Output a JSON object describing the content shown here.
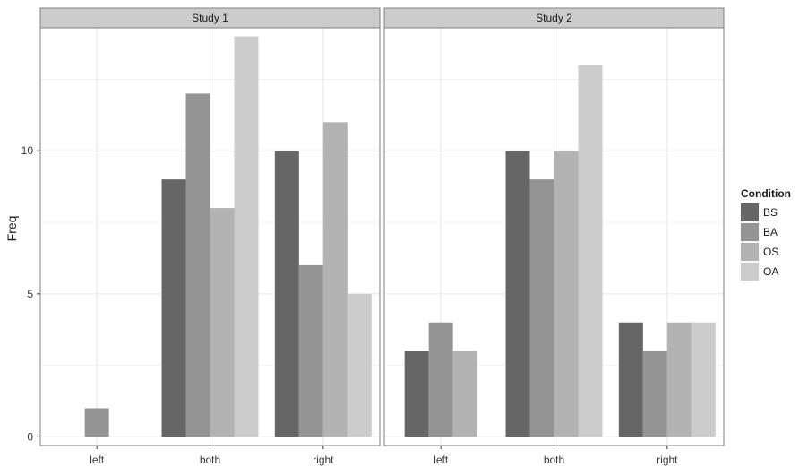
{
  "chart_data": {
    "type": "bar",
    "ylabel": "Freq",
    "xlabel": "",
    "ylim": [
      -0.3,
      14.3
    ],
    "yticks": [
      0,
      5,
      10
    ],
    "categories": [
      "left",
      "both",
      "right"
    ],
    "legend": {
      "title": "Condition",
      "position": "right",
      "items": [
        {
          "label": "BS",
          "color": "#666666"
        },
        {
          "label": "BA",
          "color": "#949494"
        },
        {
          "label": "OS",
          "color": "#b3b3b3"
        },
        {
          "label": "OA",
          "color": "#cccccc"
        }
      ]
    },
    "panels": [
      {
        "strip": "Study 1",
        "bars": [
          {
            "category": "left",
            "series": [
              {
                "name": "BA",
                "value": 1
              }
            ]
          },
          {
            "category": "both",
            "series": [
              {
                "name": "BS",
                "value": 9
              },
              {
                "name": "BA",
                "value": 12
              },
              {
                "name": "OS",
                "value": 8
              },
              {
                "name": "OA",
                "value": 14
              }
            ]
          },
          {
            "category": "right",
            "series": [
              {
                "name": "BS",
                "value": 10
              },
              {
                "name": "BA",
                "value": 6
              },
              {
                "name": "OS",
                "value": 11
              },
              {
                "name": "OA",
                "value": 5
              }
            ]
          }
        ]
      },
      {
        "strip": "Study 2",
        "bars": [
          {
            "category": "left",
            "series": [
              {
                "name": "BS",
                "value": 3
              },
              {
                "name": "BA",
                "value": 4
              },
              {
                "name": "OS",
                "value": 3
              }
            ]
          },
          {
            "category": "both",
            "series": [
              {
                "name": "BS",
                "value": 10
              },
              {
                "name": "BA",
                "value": 9
              },
              {
                "name": "OS",
                "value": 10
              },
              {
                "name": "OA",
                "value": 13
              }
            ]
          },
          {
            "category": "right",
            "series": [
              {
                "name": "BS",
                "value": 4
              },
              {
                "name": "BA",
                "value": 3
              },
              {
                "name": "OS",
                "value": 4
              },
              {
                "name": "OA",
                "value": 4
              }
            ]
          }
        ]
      }
    ],
    "grid": true
  }
}
